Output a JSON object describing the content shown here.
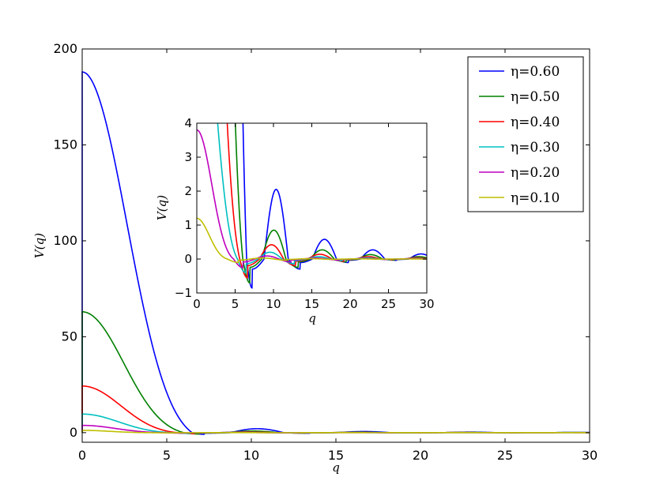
{
  "chart_data": [
    {
      "type": "line",
      "xlabel": "q",
      "ylabel": "V(q)",
      "xlim": [
        0,
        30
      ],
      "ylim": [
        -5,
        200
      ],
      "xticks": [
        0,
        5,
        10,
        15,
        20,
        25,
        30
      ],
      "yticks": [
        0,
        50,
        100,
        150,
        200
      ],
      "grid": false,
      "legend": "top-right",
      "series": [
        {
          "name": "η=0.60",
          "color": "#0000ff",
          "peak": 188.0,
          "first_zero": 6.5,
          "dip": -0.85,
          "dip_at": 7.2
        },
        {
          "name": "η=0.50",
          "color": "#008000",
          "peak": 63.0,
          "first_zero": 6.0,
          "dip": -0.7,
          "dip_at": 6.9
        },
        {
          "name": "η=0.40",
          "color": "#ff0000",
          "peak": 24.3,
          "first_zero": 5.6,
          "dip": -0.55,
          "dip_at": 6.6
        },
        {
          "name": "η=0.30",
          "color": "#00bfbf",
          "peak": 9.7,
          "first_zero": 5.3,
          "dip": -0.4,
          "dip_at": 6.4
        },
        {
          "name": "η=0.20",
          "color": "#bf00bf",
          "peak": 3.8,
          "first_zero": 4.8,
          "dip": -0.25,
          "dip_at": 6.0
        },
        {
          "name": "η=0.10",
          "color": "#bfbf00",
          "peak": 1.2,
          "first_zero": 4.0,
          "dip": -0.1,
          "dip_at": 5.4
        }
      ]
    },
    {
      "type": "line",
      "panel": "inset",
      "xlabel": "q",
      "ylabel": "V(q)",
      "xlim": [
        0,
        30
      ],
      "ylim": [
        -1,
        4
      ],
      "xticks": [
        0,
        5,
        10,
        15,
        20,
        25,
        30
      ],
      "yticks": [
        -1,
        0,
        1,
        2,
        3,
        4
      ],
      "grid": false,
      "oscillation_peaks": {
        "η=0.60": [
          2.05,
          0.58,
          0.27,
          0.15
        ],
        "η=0.50": [
          0.85,
          0.27,
          0.13,
          0.07
        ],
        "η=0.40": [
          0.42,
          0.14,
          0.07,
          0.04
        ],
        "η=0.30": [
          0.2,
          0.07,
          0.035,
          0.02
        ],
        "η=0.20": [
          0.09,
          0.03,
          0.015,
          0.01
        ],
        "η=0.10": [
          0.03,
          0.01,
          0.005,
          0.003
        ]
      }
    }
  ]
}
